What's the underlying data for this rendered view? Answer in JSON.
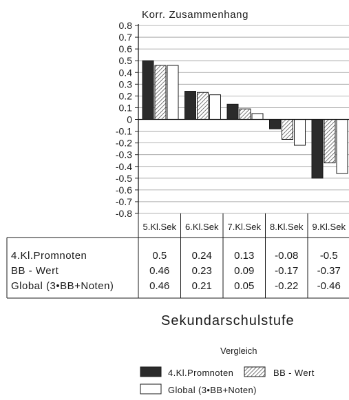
{
  "chart_data": {
    "type": "bar",
    "title": "Korr. Zusammenhang",
    "xlabel": "Sekundarschulstufe",
    "ylabel": "",
    "ylim": [
      -0.8,
      0.8
    ],
    "yticks": [
      "0.8",
      "0.7",
      "0.6",
      "0.5",
      "0.4",
      "0.3",
      "0.2",
      "0.1",
      "0",
      "-0.1",
      "-0.2",
      "-0.3",
      "-0.4",
      "-0.5",
      "-0.6",
      "-0.7",
      "-0.8"
    ],
    "grid": true,
    "categories": [
      "5.Kl.Sek",
      "6.Kl.Sek",
      "7.Kl.Sek",
      "8.Kl.Sek",
      "9.Kl.Sek"
    ],
    "series": [
      {
        "name": "4.Kl.Promnoten",
        "values": [
          0.5,
          0.24,
          0.13,
          -0.08,
          -0.5
        ],
        "fill": "#2b2b2b"
      },
      {
        "name": "BB - Wert",
        "values": [
          0.46,
          0.23,
          0.09,
          -0.17,
          -0.37
        ],
        "fill": "hatch"
      },
      {
        "name": "Global (3•BB+Noten)",
        "values": [
          0.46,
          0.21,
          0.05,
          -0.22,
          -0.46
        ],
        "fill": "#ffffff"
      }
    ],
    "table_values": [
      [
        "0.5",
        "0.24",
        "0.13",
        "-0.08",
        "-0.5"
      ],
      [
        "0.46",
        "0.23",
        "0.09",
        "-0.17",
        "-0.37"
      ],
      [
        "0.46",
        "0.21",
        "0.05",
        "-0.22",
        "-0.46"
      ]
    ],
    "legend_title": "Vergleich",
    "legend_position": "bottom"
  }
}
